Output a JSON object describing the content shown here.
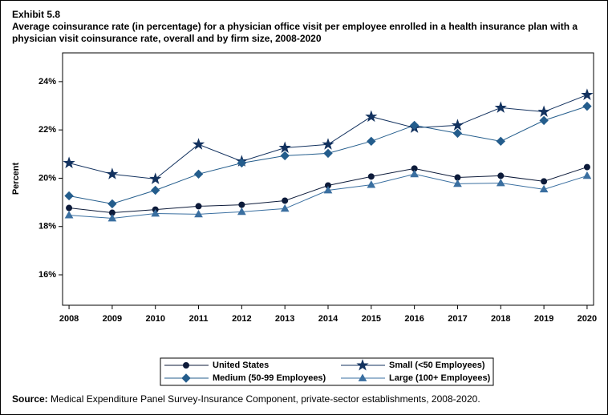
{
  "chart_data": {
    "type": "line",
    "exhibit": "Exhibit 5.8",
    "title": "Average coinsurance rate (in percentage) for a physician office visit per employee enrolled in a health insurance plan with a physician visit coinsurance rate, overall and by firm size, 2008-2020",
    "ylabel": "Percent",
    "x": [
      2008,
      2009,
      2010,
      2011,
      2012,
      2013,
      2014,
      2015,
      2016,
      2017,
      2018,
      2019,
      2020
    ],
    "xlim": [
      2007.85,
      2020.15
    ],
    "xticks": [
      2008,
      2009,
      2010,
      2011,
      2012,
      2013,
      2014,
      2015,
      2016,
      2017,
      2018,
      2019,
      2020
    ],
    "ylim": [
      14.74,
      25.19
    ],
    "yticks": [
      {
        "value": 16,
        "label": "16%"
      },
      {
        "value": 18,
        "label": "18%"
      },
      {
        "value": 20,
        "label": "20%"
      },
      {
        "value": 22,
        "label": "22%"
      },
      {
        "value": 24,
        "label": "24%"
      }
    ],
    "series": [
      {
        "name": "United States",
        "color": "#0d1b3a",
        "marker": "circle",
        "values": [
          18.77,
          18.57,
          18.7,
          18.84,
          18.9,
          19.07,
          19.7,
          20.07,
          20.4,
          20.03,
          20.1,
          19.87,
          20.46
        ]
      },
      {
        "name": "Small (<50 Employees)",
        "color": "#13325f",
        "marker": "star",
        "values": [
          20.63,
          20.17,
          19.97,
          21.4,
          20.7,
          21.26,
          21.4,
          22.55,
          22.09,
          22.19,
          22.92,
          22.75,
          23.45
        ]
      },
      {
        "name": "Medium (50-99 Employees)",
        "color": "#245d8c",
        "marker": "diamond",
        "values": [
          19.27,
          18.94,
          19.5,
          20.17,
          20.63,
          20.93,
          21.03,
          21.53,
          22.19,
          21.86,
          21.53,
          22.39,
          22.98
        ]
      },
      {
        "name": "Large (100+ Employees)",
        "color": "#3a6fa0",
        "marker": "triangle",
        "values": [
          18.47,
          18.34,
          18.54,
          18.51,
          18.61,
          18.74,
          19.5,
          19.73,
          20.17,
          19.77,
          19.8,
          19.54,
          20.1
        ]
      }
    ],
    "source_label": "Source:",
    "source": "Medical Expenditure Panel Survey-Insurance Component, private-sector establishments, 2008-2020."
  }
}
